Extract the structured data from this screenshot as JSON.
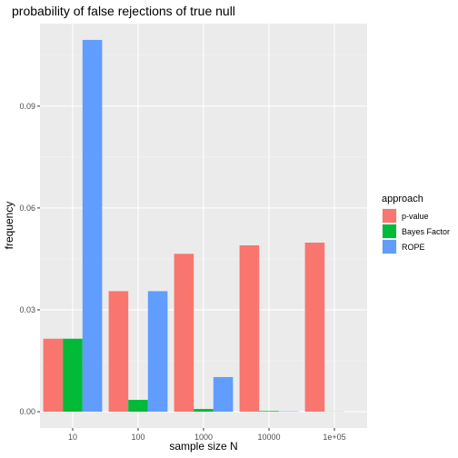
{
  "chart_data": {
    "type": "bar",
    "title": "probability of false rejections of true null",
    "xlabel": "sample size N",
    "ylabel": "frequency",
    "categories": [
      "10",
      "100",
      "1000",
      "10000",
      "1e+05"
    ],
    "series": [
      {
        "name": "p-value",
        "color": "#F8766D",
        "values": [
          0.0215,
          0.0355,
          0.0465,
          0.049,
          0.0498
        ]
      },
      {
        "name": "Bayes Factor",
        "color": "#00BA38",
        "values": [
          0.0215,
          0.0035,
          0.0008,
          0.0002,
          5e-05
        ]
      },
      {
        "name": "ROPE",
        "color": "#619CFF",
        "values": [
          0.1095,
          0.0355,
          0.0102,
          0.0001,
          0.0
        ]
      }
    ],
    "ylim": [
      -0.0048,
      0.1143
    ],
    "yticks": [
      0.0,
      0.03,
      0.06,
      0.09
    ],
    "ytick_labels": [
      "0.00",
      "0.03",
      "0.06",
      "0.09"
    ],
    "grid": true,
    "legend": {
      "title": "approach",
      "position": "right"
    }
  }
}
